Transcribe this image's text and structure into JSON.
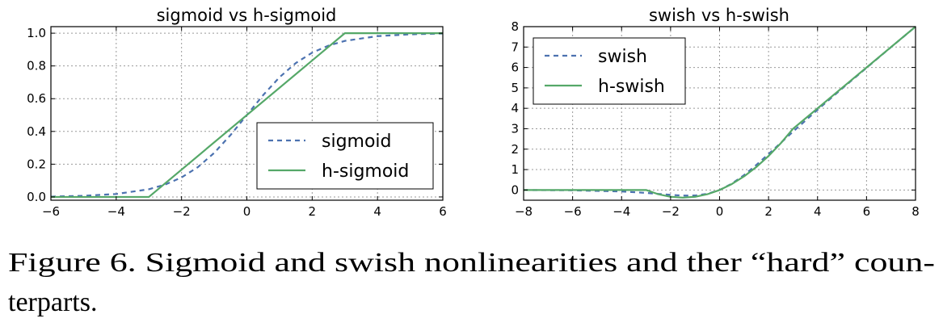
{
  "chart_data": [
    {
      "type": "line",
      "title": "sigmoid vs h-sigmoid",
      "xlabel": "",
      "ylabel": "",
      "xlim": [
        -6,
        6
      ],
      "ylim": [
        -0.02,
        1.04
      ],
      "xticks": [
        -6,
        -4,
        -2,
        0,
        2,
        4,
        6
      ],
      "xtick_labels": [
        "−6",
        "−4",
        "−2",
        "0",
        "2",
        "4",
        "6"
      ],
      "yticks": [
        0.0,
        0.2,
        0.4,
        0.6,
        0.8,
        1.0
      ],
      "ytick_labels": [
        "0.0",
        "0.2",
        "0.4",
        "0.6",
        "0.8",
        "1.0"
      ],
      "grid": true,
      "legend_position": "lower-right",
      "series": [
        {
          "name": "sigmoid",
          "style": "dashed",
          "color": "#4c72b0",
          "x": [
            -6,
            -5,
            -4,
            -3,
            -2.5,
            -2,
            -1.5,
            -1,
            -0.5,
            0,
            0.5,
            1,
            1.5,
            2,
            2.5,
            3,
            4,
            5,
            6
          ],
          "y": [
            0.002,
            0.007,
            0.018,
            0.047,
            0.076,
            0.119,
            0.182,
            0.269,
            0.378,
            0.5,
            0.622,
            0.731,
            0.818,
            0.881,
            0.924,
            0.953,
            0.982,
            0.993,
            0.998
          ]
        },
        {
          "name": "h-sigmoid",
          "style": "solid",
          "color": "#55a868",
          "x": [
            -6,
            -3,
            3,
            6
          ],
          "y": [
            0,
            0,
            1,
            1
          ]
        }
      ]
    },
    {
      "type": "line",
      "title": "swish vs h-swish",
      "xlabel": "",
      "ylabel": "",
      "xlim": [
        -8,
        8
      ],
      "ylim": [
        -0.5,
        8
      ],
      "xticks": [
        -8,
        -6,
        -4,
        -2,
        0,
        2,
        4,
        6,
        8
      ],
      "xtick_labels": [
        "−8",
        "−6",
        "−4",
        "−2",
        "0",
        "2",
        "4",
        "6",
        "8"
      ],
      "yticks": [
        0,
        1,
        2,
        3,
        4,
        5,
        6,
        7,
        8
      ],
      "ytick_labels": [
        "0",
        "1",
        "2",
        "3",
        "4",
        "5",
        "6",
        "7",
        "8"
      ],
      "grid": true,
      "legend_position": "upper-left",
      "series": [
        {
          "name": "swish",
          "style": "dashed",
          "color": "#4c72b0",
          "x": [
            -8,
            -6,
            -4,
            -3,
            -2.5,
            -2,
            -1.5,
            -1,
            -0.5,
            0,
            0.5,
            1,
            1.5,
            2,
            3,
            4,
            5,
            6,
            7,
            8
          ],
          "y": [
            -0.003,
            -0.015,
            -0.072,
            -0.142,
            -0.19,
            -0.238,
            -0.274,
            -0.269,
            -0.189,
            0,
            0.311,
            0.731,
            1.227,
            1.762,
            2.858,
            3.928,
            4.967,
            5.985,
            6.994,
            7.997
          ]
        },
        {
          "name": "h-swish",
          "style": "solid",
          "color": "#55a868",
          "x": [
            -8,
            -3,
            -2.5,
            -2,
            -1.5,
            -1,
            -0.5,
            0,
            0.5,
            1,
            1.5,
            2,
            2.5,
            3,
            8
          ],
          "y": [
            0,
            0,
            -0.208,
            -0.333,
            -0.375,
            -0.333,
            -0.208,
            0,
            0.292,
            0.667,
            1.125,
            1.667,
            2.292,
            3,
            8
          ]
        }
      ]
    }
  ],
  "caption": {
    "line1": "Figure 6. Sigmoid and swish nonlinearities and ther “hard” coun-",
    "line2": "terparts."
  }
}
